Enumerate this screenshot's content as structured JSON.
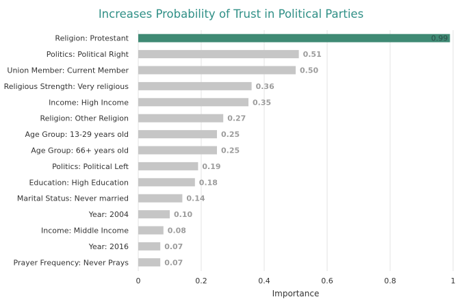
{
  "chart_data": {
    "type": "bar",
    "orientation": "horizontal",
    "title": "Increases Probability of Trust in Political Parties",
    "xlabel": "Importance",
    "ylabel": "",
    "xlim": [
      0,
      1
    ],
    "xticks": [
      0,
      0.2,
      0.4,
      0.6,
      0.8,
      1
    ],
    "xtick_labels": [
      "0",
      "0.2",
      "0.4",
      "0.6",
      "0.8",
      "1"
    ],
    "grid": "vertical",
    "categories": [
      "Religion: Protestant",
      "Politics: Political Right",
      "Union Member: Current Member",
      "Religious Strength: Very religious",
      "Income: High Income",
      "Religion: Other Religion",
      "Age Group: 13-29 years old",
      "Age Group: 66+ years old",
      "Politics: Political Left",
      "Education: High Education",
      "Marital Status: Never married",
      "Year: 2004",
      "Income: Middle Income",
      "Year: 2016",
      "Prayer Frequency: Never Prays"
    ],
    "values": [
      0.99,
      0.51,
      0.5,
      0.36,
      0.35,
      0.27,
      0.25,
      0.25,
      0.19,
      0.18,
      0.14,
      0.1,
      0.08,
      0.07,
      0.07
    ],
    "value_labels": [
      "0.99",
      "0.51",
      "0.50",
      "0.36",
      "0.35",
      "0.27",
      "0.25",
      "0.25",
      "0.19",
      "0.18",
      "0.14",
      "0.10",
      "0.08",
      "0.07",
      "0.07"
    ],
    "colors": {
      "highlight": "#3f8a74",
      "bar": "#c6c6c6",
      "title": "#2f8f86",
      "grid": "#e3e3e3"
    }
  }
}
